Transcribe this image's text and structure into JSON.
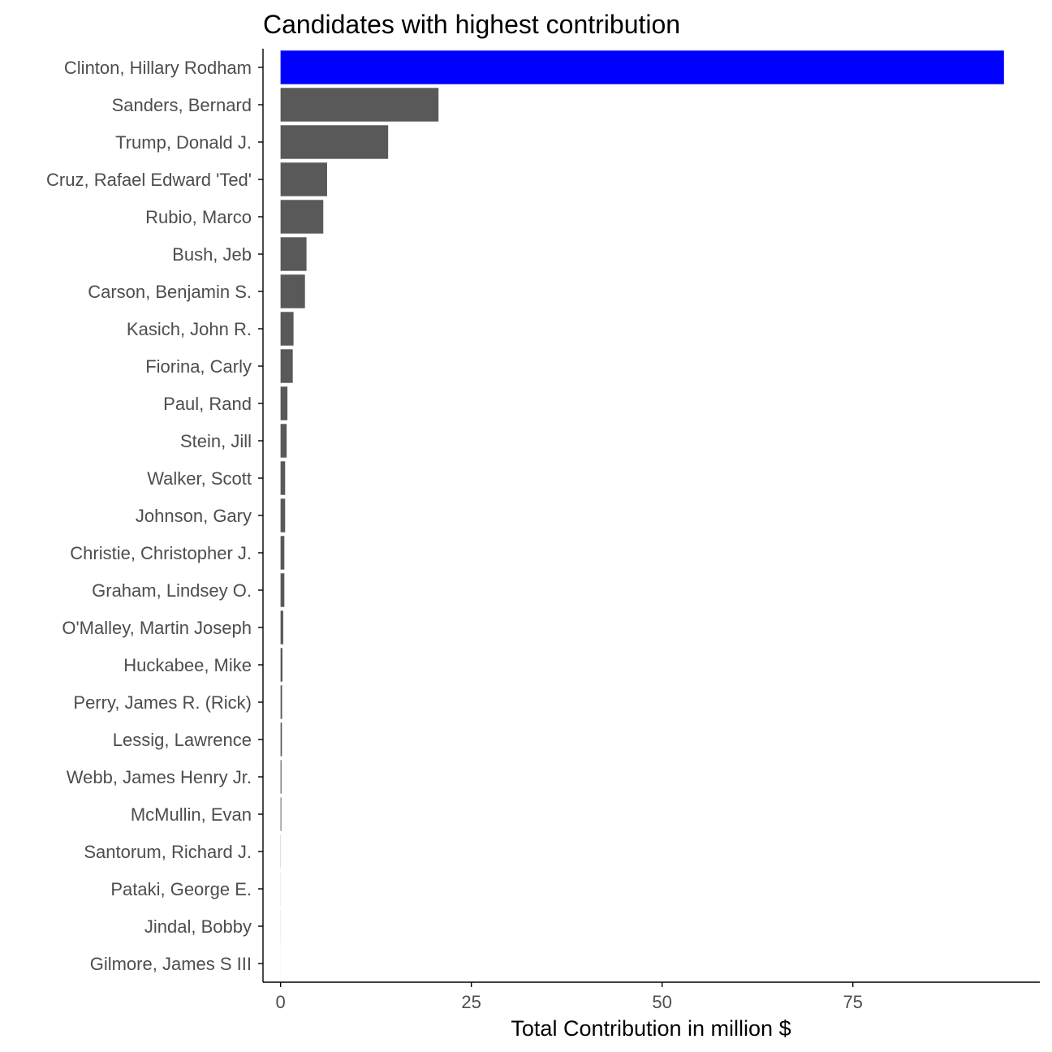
{
  "chart_data": {
    "type": "bar",
    "orientation": "horizontal",
    "title": "Candidates with highest contribution",
    "xlabel": "Total Contribution in million $",
    "ylabel": "",
    "xlim": [
      -2.3,
      99.5
    ],
    "xticks": [
      0,
      25,
      50,
      75
    ],
    "grid": false,
    "legend": "none",
    "colors": {
      "highlight": "#0000ff",
      "default": "#595959",
      "axis": "#000000",
      "tick_text": "#4d4d4d"
    },
    "categories": [
      "Clinton, Hillary Rodham",
      "Sanders, Bernard",
      "Trump, Donald J.",
      "Cruz, Rafael Edward 'Ted'",
      "Rubio, Marco",
      "Bush, Jeb",
      "Carson, Benjamin S.",
      "Kasich, John R.",
      "Fiorina, Carly",
      "Paul, Rand",
      "Stein, Jill",
      "Walker, Scott",
      "Johnson, Gary",
      "Christie, Christopher J.",
      "Graham, Lindsey O.",
      "O'Malley, Martin Joseph",
      "Huckabee, Mike",
      "Perry, James R. (Rick)",
      "Lessig, Lawrence",
      "Webb, James Henry Jr.",
      "McMullin, Evan",
      "Santorum, Richard J.",
      "Pataki, George E.",
      "Jindal, Bobby",
      "Gilmore, James S III"
    ],
    "values": [
      94.8,
      20.7,
      14.1,
      6.1,
      5.6,
      3.4,
      3.2,
      1.7,
      1.6,
      0.9,
      0.8,
      0.6,
      0.6,
      0.5,
      0.5,
      0.35,
      0.25,
      0.2,
      0.18,
      0.12,
      0.1,
      0.02,
      0.01,
      0.01,
      0.005
    ],
    "highlight": [
      true,
      false,
      false,
      false,
      false,
      false,
      false,
      false,
      false,
      false,
      false,
      false,
      false,
      false,
      false,
      false,
      false,
      false,
      false,
      false,
      false,
      false,
      false,
      false,
      false
    ]
  }
}
